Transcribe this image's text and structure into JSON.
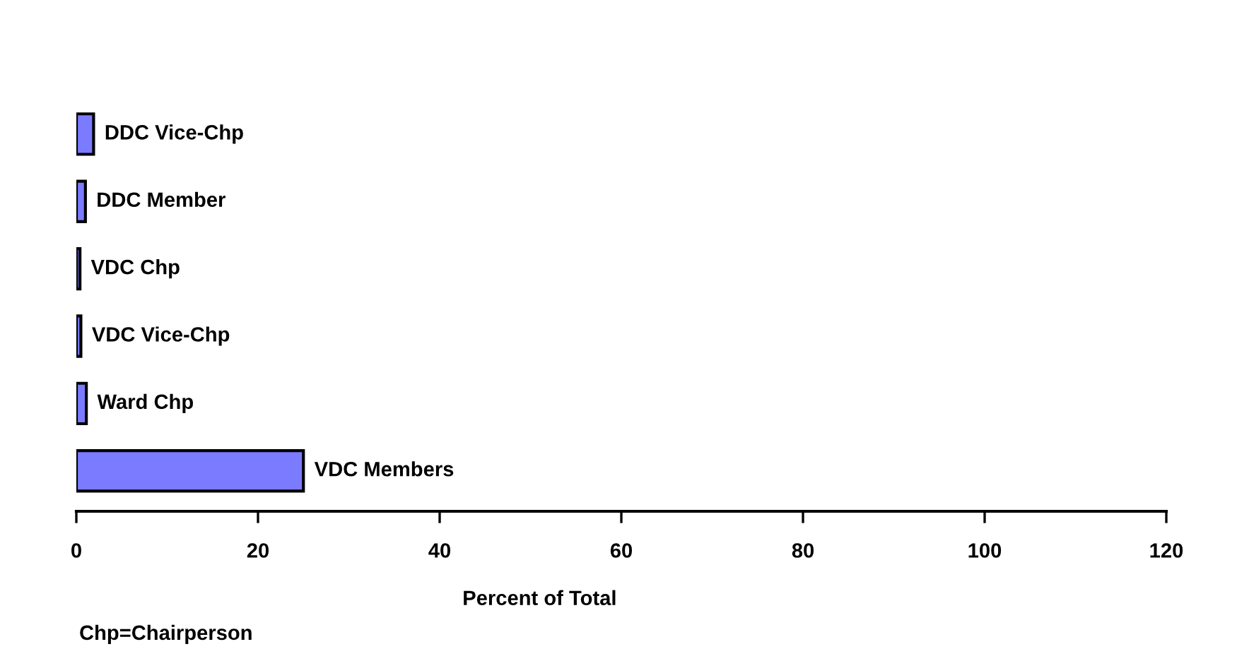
{
  "chart_data": {
    "type": "bar",
    "orientation": "horizontal",
    "xlabel": "Percent of Total",
    "categories": [
      "DDC Vice-Chp",
      "DDC Member",
      "VDC Chp",
      "VDC Vice-Chp",
      "Ward Chp",
      "VDC Members"
    ],
    "values": [
      1.9,
      1.0,
      0.4,
      0.5,
      1.1,
      25.0
    ],
    "color": "#7b7bff",
    "xlim": [
      0,
      120
    ],
    "xticks": [
      0,
      20,
      40,
      60,
      80,
      100,
      120
    ],
    "grid": false,
    "annotations": [
      "Chp=Chairperson"
    ]
  }
}
